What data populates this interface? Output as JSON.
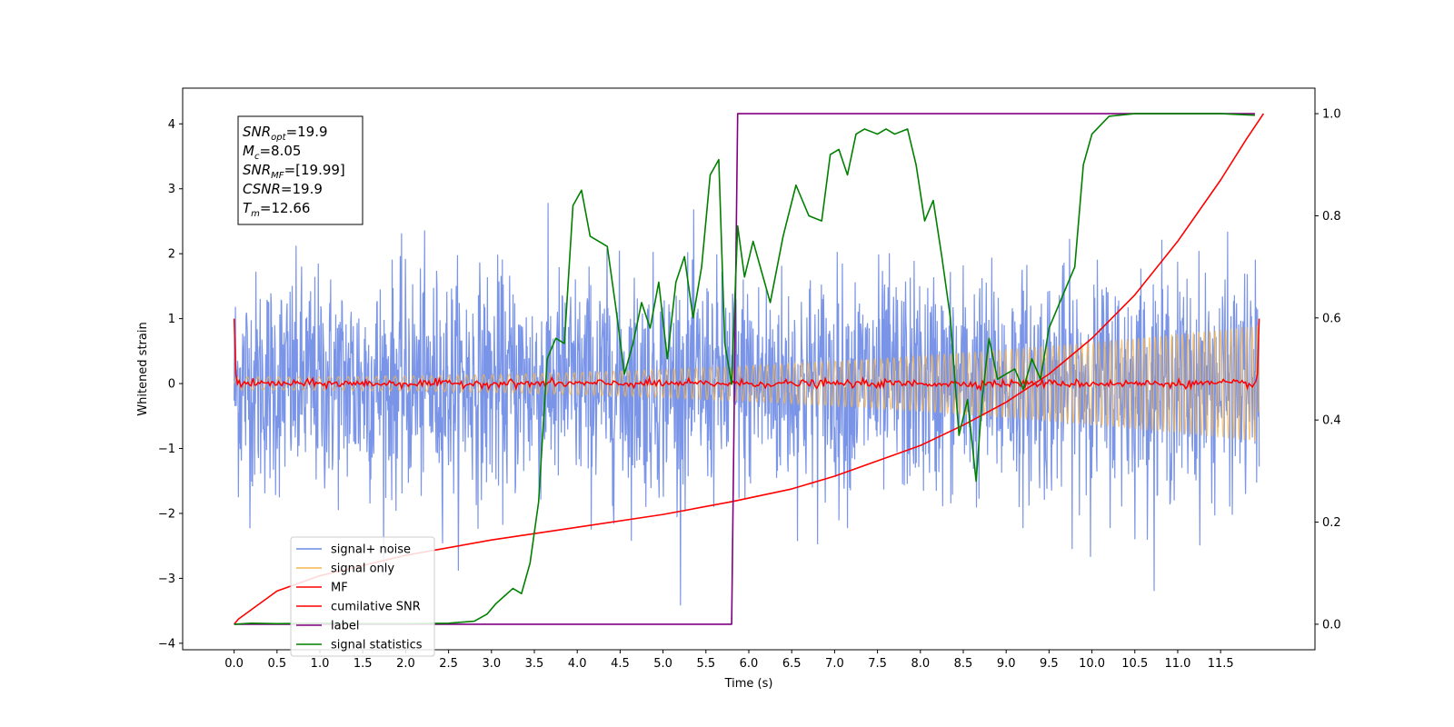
{
  "chart_data": {
    "type": "line",
    "xlabel": "Time (s)",
    "ylabel": "Whitened strain",
    "xlim": [
      -0.6,
      12.6
    ],
    "ylim_left": [
      -4.1,
      4.55
    ],
    "ylim_right": [
      -0.05,
      1.05
    ],
    "x_ticks": [
      "0.0",
      "0.5",
      "1.0",
      "1.5",
      "2.0",
      "2.5",
      "3.0",
      "3.5",
      "4.0",
      "4.5",
      "5.0",
      "5.5",
      "6.0",
      "6.5",
      "7.0",
      "7.5",
      "8.0",
      "8.5",
      "9.0",
      "9.5",
      "10.0",
      "10.5",
      "11.0",
      "11.5"
    ],
    "y_ticks_left": [
      "4",
      "3",
      "2",
      "1",
      "0",
      "−1",
      "−2",
      "−3",
      "−4"
    ],
    "y_ticks_right": [
      "1.0",
      "0.8",
      "0.6",
      "0.4",
      "0.2",
      "0.0"
    ],
    "info_box": {
      "lines": [
        {
          "sym": "SNR",
          "sub": "opt",
          "val": "=19.9"
        },
        {
          "sym": "M",
          "sub": "c",
          "val": "=8.05"
        },
        {
          "sym": "SNR",
          "sub": "MF",
          "val": "=[19.99]"
        },
        {
          "sym": "CSNR",
          "sub": "",
          "val": "=19.9"
        },
        {
          "sym": "T",
          "sub": "m",
          "val": "=12.66"
        }
      ]
    },
    "legend_position": "lower-left",
    "series": [
      {
        "name": "signal+ noise",
        "color": "#6b88e6",
        "axis": "left",
        "kind": "noise",
        "sigma": 0.85,
        "peak": 3.7
      },
      {
        "name": "signal only",
        "color": "#f5b54f",
        "axis": "left",
        "kind": "chirp",
        "amp_start": 0.1,
        "amp_end": 0.9
      },
      {
        "name": "MF",
        "color": "#ff0000",
        "axis": "left",
        "kind": "mf",
        "endpoints": 1.0
      },
      {
        "name": "cumilative SNR",
        "color": "#ff0000",
        "axis": "right",
        "x": [
          0.0,
          0.05,
          0.5,
          1.0,
          2.0,
          3.0,
          4.0,
          5.0,
          5.8,
          6.5,
          7.0,
          7.5,
          8.0,
          8.5,
          9.0,
          9.5,
          10.0,
          10.5,
          11.0,
          11.5,
          11.8,
          12.0
        ],
        "values": [
          0.0,
          0.01,
          0.065,
          0.095,
          0.135,
          0.165,
          0.19,
          0.215,
          0.24,
          0.265,
          0.29,
          0.32,
          0.35,
          0.39,
          0.435,
          0.49,
          0.56,
          0.645,
          0.75,
          0.87,
          0.95,
          1.0
        ]
      },
      {
        "name": "label",
        "color": "#800080",
        "axis": "right",
        "x": [
          0.0,
          5.8,
          5.87,
          11.9
        ],
        "values": [
          0.0,
          0.0,
          1.0,
          1.0
        ]
      },
      {
        "name": "signal statistics",
        "color": "#008000",
        "axis": "right",
        "x": [
          0.0,
          0.2,
          0.5,
          1.0,
          1.5,
          2.0,
          2.5,
          2.8,
          2.95,
          3.05,
          3.15,
          3.25,
          3.35,
          3.45,
          3.55,
          3.65,
          3.75,
          3.85,
          3.95,
          4.05,
          4.15,
          4.25,
          4.35,
          4.45,
          4.55,
          4.65,
          4.75,
          4.85,
          4.95,
          5.05,
          5.15,
          5.25,
          5.35,
          5.45,
          5.55,
          5.65,
          5.72,
          5.8,
          5.87,
          5.95,
          6.05,
          6.15,
          6.25,
          6.4,
          6.55,
          6.7,
          6.85,
          6.95,
          7.05,
          7.15,
          7.25,
          7.35,
          7.5,
          7.6,
          7.7,
          7.85,
          7.95,
          8.05,
          8.15,
          8.25,
          8.35,
          8.45,
          8.55,
          8.65,
          8.72,
          8.8,
          8.9,
          9.0,
          9.1,
          9.2,
          9.3,
          9.4,
          9.5,
          9.6,
          9.7,
          9.8,
          9.9,
          10.0,
          10.2,
          10.5,
          11.0,
          11.5,
          11.9
        ],
        "values": [
          0.0,
          0.002,
          0.001,
          0.002,
          0.001,
          0.001,
          0.002,
          0.006,
          0.02,
          0.04,
          0.055,
          0.07,
          0.06,
          0.12,
          0.24,
          0.52,
          0.56,
          0.55,
          0.82,
          0.85,
          0.76,
          0.75,
          0.74,
          0.62,
          0.49,
          0.55,
          0.63,
          0.58,
          0.67,
          0.52,
          0.67,
          0.72,
          0.6,
          0.7,
          0.88,
          0.91,
          0.55,
          0.47,
          0.78,
          0.68,
          0.75,
          0.69,
          0.63,
          0.76,
          0.86,
          0.8,
          0.79,
          0.92,
          0.93,
          0.88,
          0.96,
          0.97,
          0.96,
          0.97,
          0.96,
          0.97,
          0.9,
          0.79,
          0.83,
          0.72,
          0.6,
          0.37,
          0.44,
          0.28,
          0.44,
          0.56,
          0.48,
          0.49,
          0.5,
          0.46,
          0.52,
          0.48,
          0.58,
          0.62,
          0.66,
          0.7,
          0.9,
          0.96,
          0.995,
          1.0,
          1.0,
          1.0,
          0.997
        ]
      }
    ]
  }
}
